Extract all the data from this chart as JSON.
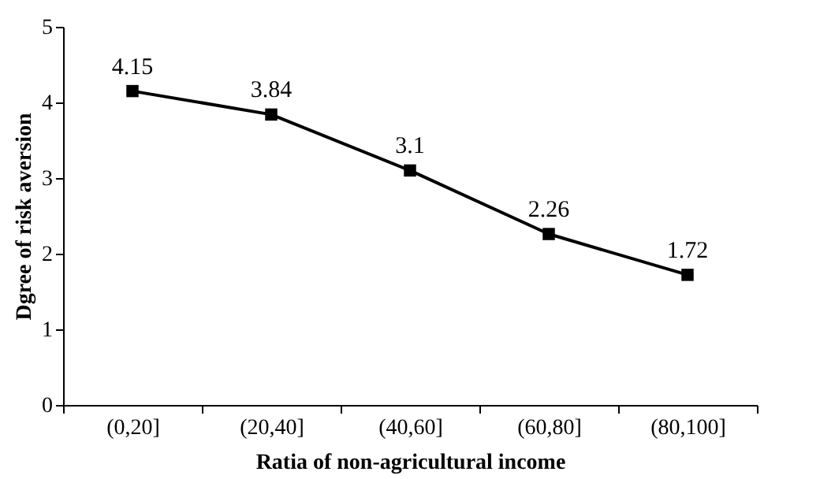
{
  "chart_data": {
    "type": "line",
    "xlabel": "Ratia of non-agricultural income",
    "ylabel": "Dgree of risk aversion",
    "categories": [
      "(0,20]",
      "(20,40]",
      "(40,60]",
      "(60,80]",
      "(80,100]"
    ],
    "series": [
      {
        "color": "#000000",
        "values": [
          4.15,
          3.84,
          3.1,
          2.26,
          1.72
        ]
      }
    ],
    "ylim": [
      0,
      5
    ],
    "yticks": [
      0,
      1,
      2,
      3,
      4,
      5
    ],
    "marker": "square",
    "line_style": "solid",
    "data_labels": true,
    "grid": false,
    "legend": false
  }
}
